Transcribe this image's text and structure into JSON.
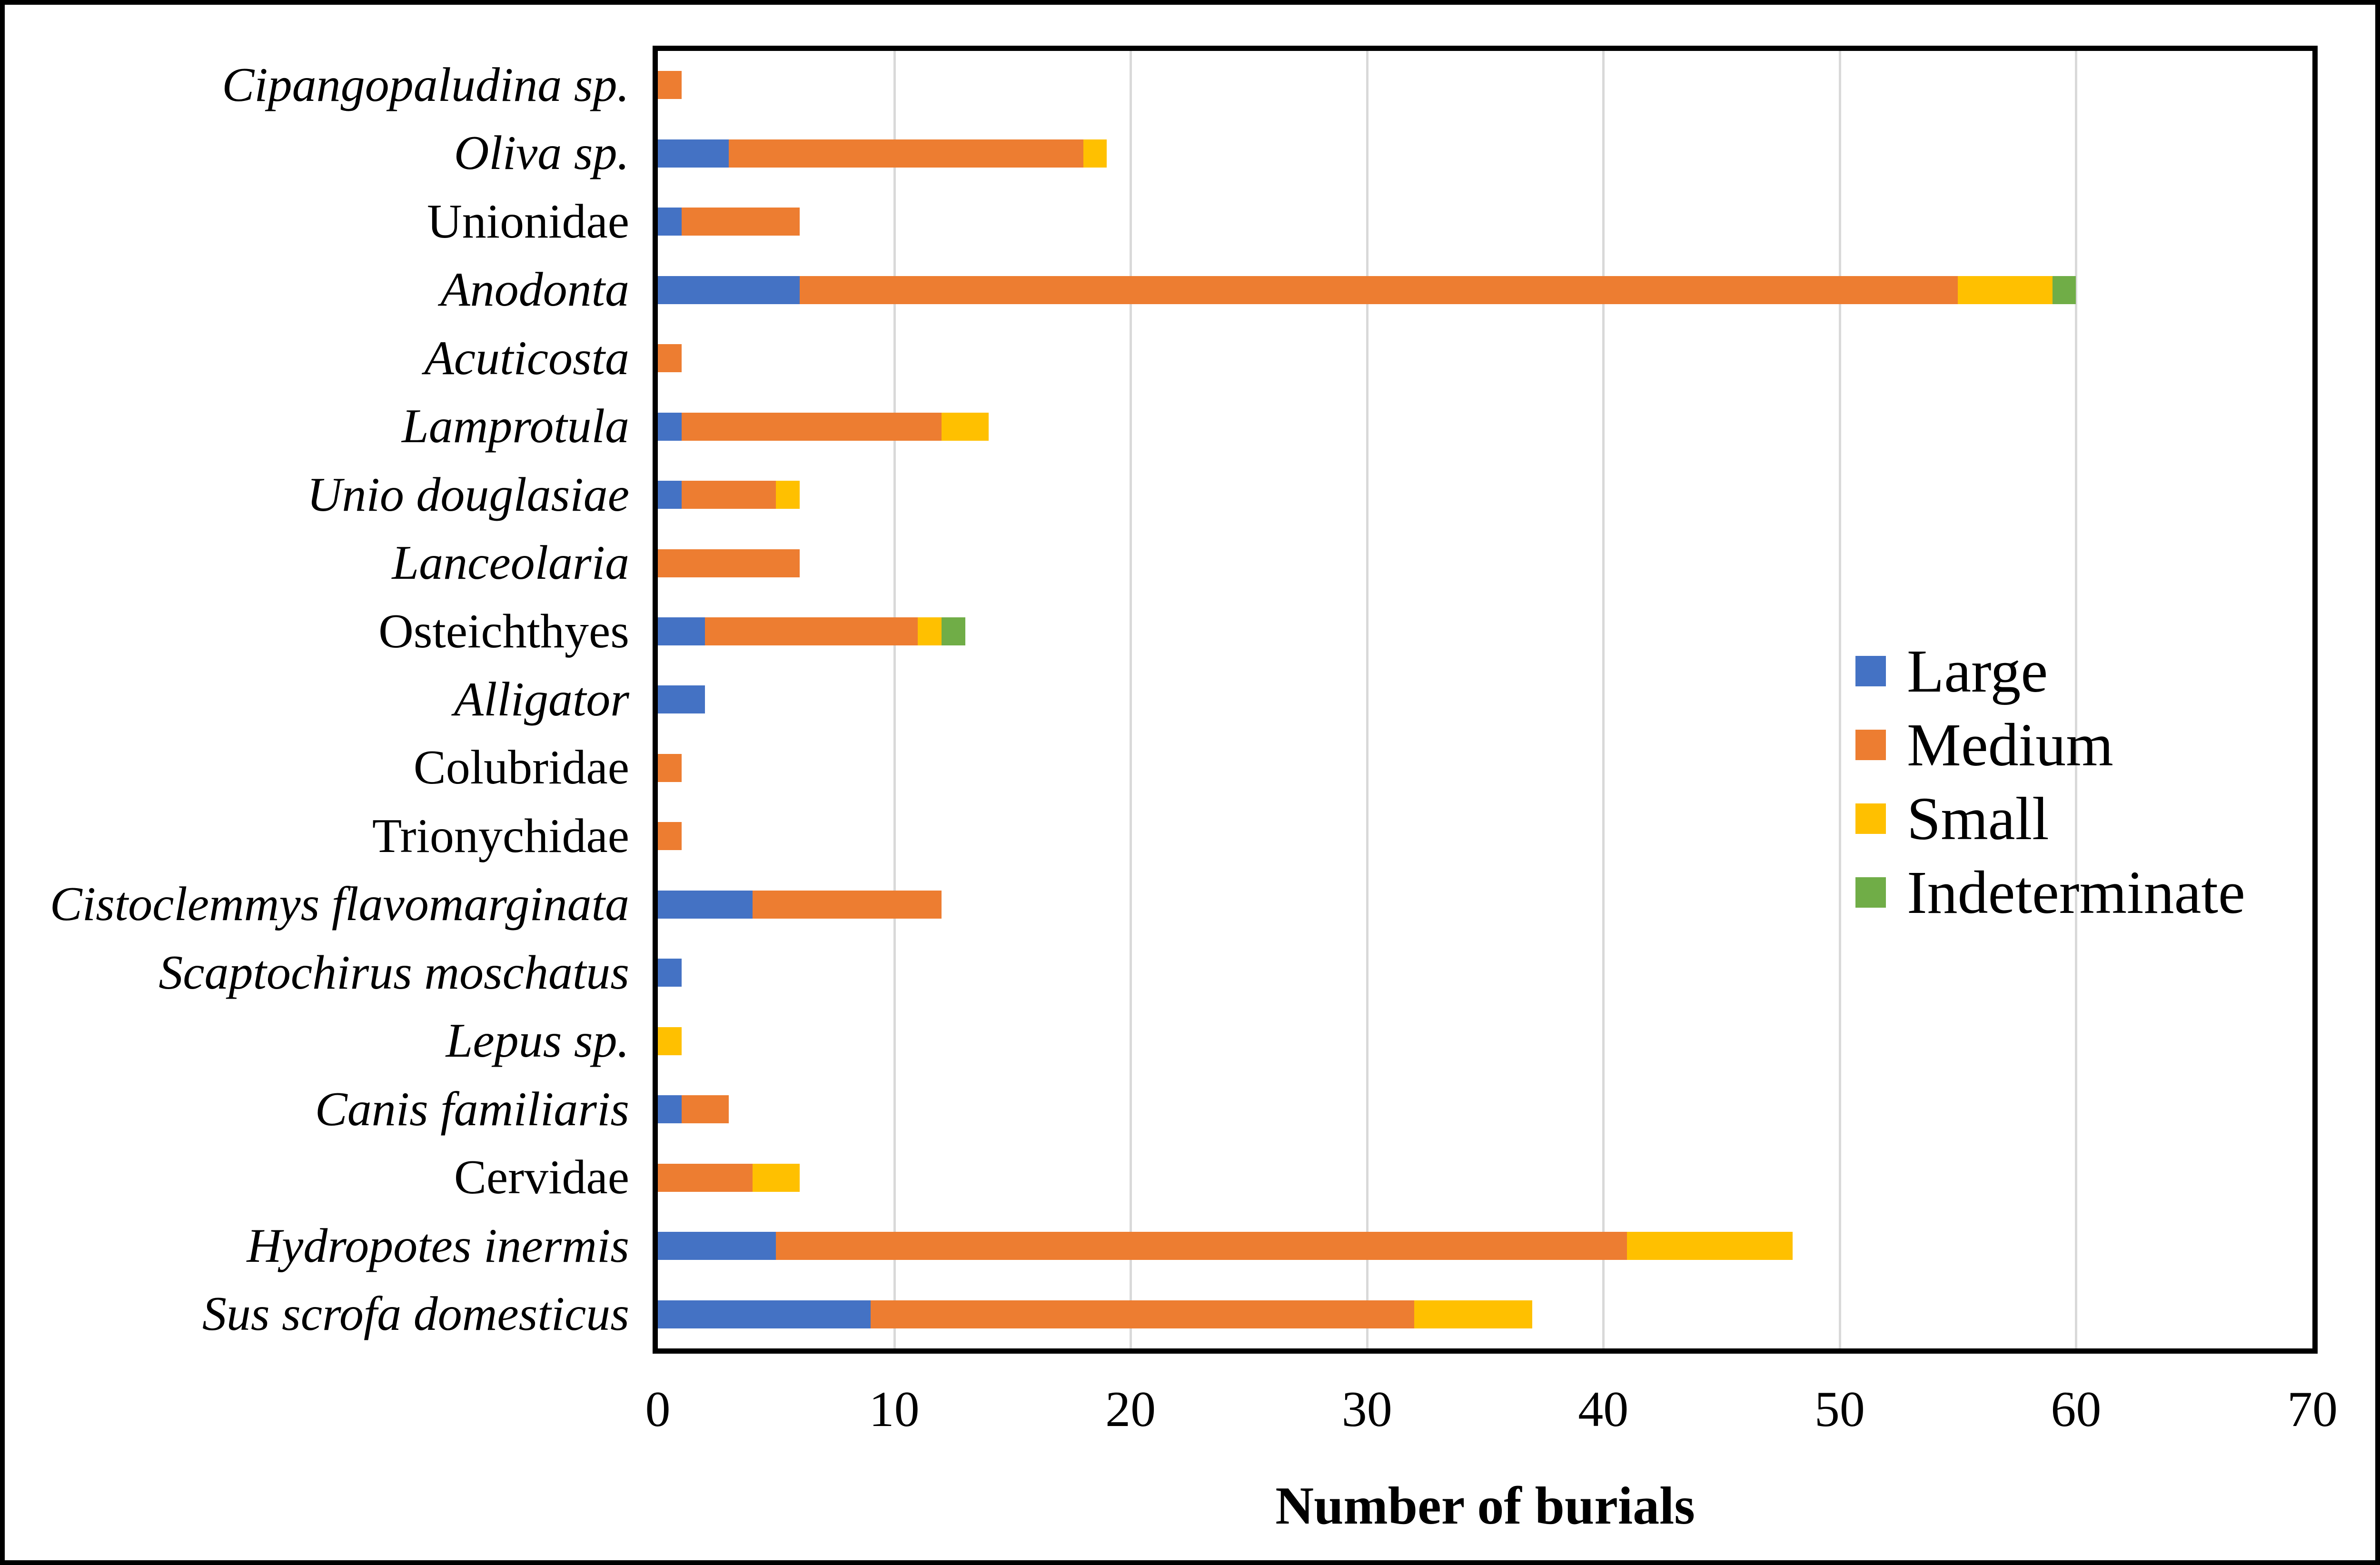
{
  "figure": {
    "background_color": "#ffffff",
    "frame_color": "#000000",
    "plot_border_color": "#000000"
  },
  "chart_data": {
    "type": "bar",
    "orientation": "horizontal",
    "stacked": true,
    "title": "",
    "xlabel": "Number of burials",
    "ylabel": "",
    "xlim": [
      0,
      70
    ],
    "xticks": [
      0,
      10,
      20,
      30,
      40,
      50,
      60,
      70
    ],
    "grid": "vertical",
    "gridline_color": "#d9d9d9",
    "legend_position": "inside-right",
    "categories": [
      "Cipangopaludina sp.",
      "Oliva sp.",
      "Unionidae",
      "Anodonta",
      "Acuticosta",
      "Lamprotula",
      "Unio douglasiae",
      "Lanceolaria",
      "Osteichthyes",
      "Alligator",
      "Colubridae",
      "Trionychidae",
      "Cistoclemmys flavomarginata",
      "Scaptochirus moschatus",
      "Lepus sp.",
      "Canis familiaris",
      "Cervidae",
      "Hydropotes inermis",
      "Sus scrofa domesticus"
    ],
    "categories_italic": [
      true,
      true,
      false,
      true,
      true,
      true,
      true,
      true,
      false,
      true,
      false,
      false,
      true,
      true,
      true,
      true,
      false,
      true,
      true
    ],
    "series": [
      {
        "name": "Large",
        "color": "#4472C4",
        "values": [
          0,
          3,
          1,
          6,
          0,
          1,
          1,
          0,
          2,
          2,
          0,
          0,
          4,
          1,
          0,
          1,
          0,
          5,
          9
        ]
      },
      {
        "name": "Medium",
        "color": "#ED7D31",
        "values": [
          1,
          15,
          5,
          49,
          1,
          11,
          4,
          6,
          9,
          0,
          1,
          1,
          8,
          0,
          0,
          2,
          4,
          36,
          23
        ]
      },
      {
        "name": "Small",
        "color": "#FFC000",
        "values": [
          0,
          1,
          0,
          4,
          0,
          2,
          1,
          0,
          1,
          0,
          0,
          0,
          0,
          0,
          1,
          0,
          2,
          7,
          5
        ]
      },
      {
        "name": "Indeterminate",
        "color": "#70AD47",
        "values": [
          0,
          0,
          0,
          1,
          0,
          0,
          0,
          0,
          1,
          0,
          0,
          0,
          0,
          0,
          0,
          0,
          0,
          0,
          0
        ]
      }
    ]
  }
}
